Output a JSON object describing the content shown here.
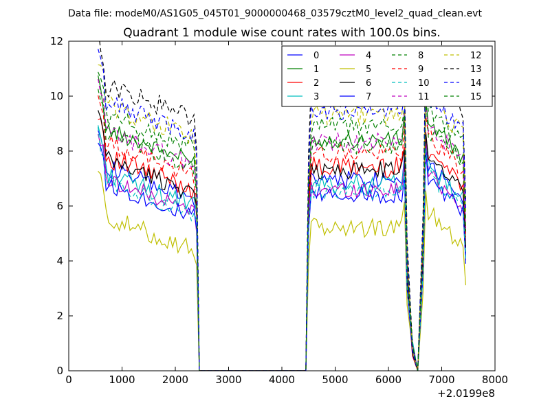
{
  "figure": {
    "suptitle": "Data file: modeM0/AS1G05_045T01_9000000468_03579cztM0_level2_quad_clean.evt"
  },
  "chart_data": {
    "type": "line",
    "title": "Quadrant 1 module wise count rates with 100.0s bins.",
    "xlabel": "",
    "ylabel": "",
    "x_offset_label": "+2.0199e8",
    "xlim": [
      0,
      8000
    ],
    "ylim": [
      0,
      12
    ],
    "xticks": [
      0,
      1000,
      2000,
      3000,
      4000,
      5000,
      6000,
      7000,
      8000
    ],
    "yticks": [
      0,
      2,
      4,
      6,
      8,
      10,
      12
    ],
    "grid": false,
    "legend_placement": "top-right",
    "legend_columns": 4,
    "segments": [
      {
        "x_start": 550,
        "x_end": 2450,
        "drop_to_zero_at": 2450
      },
      {
        "x_start": 4450,
        "x_end": 6350
      },
      {
        "x_start": 6550,
        "x_end": 7450
      }
    ],
    "series": [
      {
        "name": "0",
        "color": "#0000ff",
        "dash": "solid",
        "base": 6.6,
        "amp": 0.35
      },
      {
        "name": "1",
        "color": "#008000",
        "dash": "solid",
        "base": 8.0,
        "amp": 0.3
      },
      {
        "name": "2",
        "color": "#ff0000",
        "dash": "solid",
        "base": 7.0,
        "amp": 0.4
      },
      {
        "name": "3",
        "color": "#00bfbf",
        "dash": "solid",
        "base": 6.4,
        "amp": 0.35
      },
      {
        "name": "4",
        "color": "#bf00bf",
        "dash": "solid",
        "base": 6.2,
        "amp": 0.3
      },
      {
        "name": "5",
        "color": "#bfbf00",
        "dash": "solid",
        "base": 4.8,
        "amp": 0.35
      },
      {
        "name": "6",
        "color": "#000000",
        "dash": "solid",
        "base": 6.9,
        "amp": 0.35
      },
      {
        "name": "7",
        "color": "#0000ff",
        "dash": "solid",
        "base": 6.0,
        "amp": 0.3
      },
      {
        "name": "8",
        "color": "#008000",
        "dash": "dashed",
        "base": 8.5,
        "amp": 0.35
      },
      {
        "name": "9",
        "color": "#ff0000",
        "dash": "dashed",
        "base": 7.5,
        "amp": 0.35
      },
      {
        "name": "10",
        "color": "#00bfbf",
        "dash": "dashed",
        "base": 6.1,
        "amp": 0.3
      },
      {
        "name": "11",
        "color": "#bf00bf",
        "dash": "dashed",
        "base": 7.9,
        "amp": 0.35
      },
      {
        "name": "12",
        "color": "#bfbf00",
        "dash": "dashed",
        "base": 8.9,
        "amp": 0.4
      },
      {
        "name": "13",
        "color": "#000000",
        "dash": "dashed",
        "base": 9.6,
        "amp": 0.4
      },
      {
        "name": "14",
        "color": "#0000ff",
        "dash": "dashed",
        "base": 9.0,
        "amp": 0.35
      },
      {
        "name": "15",
        "color": "#008000",
        "dash": "dashed",
        "base": 7.8,
        "amp": 0.35
      }
    ]
  }
}
